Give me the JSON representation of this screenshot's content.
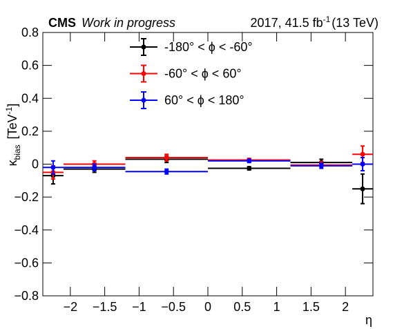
{
  "chart_data": {
    "type": "scatter",
    "experiment": "CMS",
    "status": "Work in progress",
    "lumi_text": "2017, 41.5 fb",
    "lumi_sup": "-1",
    "energy": "(13 TeV)",
    "y_label": "κ",
    "y_label_sub": "bias",
    "y_label_unit": "[TeV",
    "y_label_unit_sup": "-1",
    "y_label_close": "]",
    "x_label": "η",
    "xlim": [
      -2.4,
      2.4
    ],
    "ylim": [
      -0.8,
      0.8
    ],
    "xticks": [
      {
        "value": -2,
        "label": "−2"
      },
      {
        "value": -1.5,
        "label": "−1.5"
      },
      {
        "value": -1,
        "label": "−1"
      },
      {
        "value": -0.5,
        "label": "−0.5"
      },
      0,
      0.5,
      1,
      1.5,
      2
    ],
    "yticks": [
      {
        "value": -0.8,
        "label": "−0.8"
      },
      {
        "value": -0.6,
        "label": "−0.6"
      },
      {
        "value": -0.4,
        "label": "−0.4"
      },
      {
        "value": -0.2,
        "label": "−0.2"
      },
      0,
      0.2,
      0.4,
      0.6,
      0.8
    ],
    "legend": "top-left",
    "series": [
      {
        "name": "-180° < ϕ < -60°",
        "color": "#000000",
        "x": [
          -2.25,
          -1.65,
          -0.6,
          0.6,
          1.65,
          2.25
        ],
        "xerr": [
          0.15,
          0.45,
          0.6,
          0.6,
          0.45,
          0.15
        ],
        "values": [
          -0.07,
          -0.03,
          0.03,
          -0.025,
          0.01,
          -0.15
        ],
        "errors": [
          0.05,
          0.02,
          0.02,
          0.01,
          0.02,
          0.09
        ]
      },
      {
        "name": "-60° < ϕ < 60°",
        "color": "#ff0000",
        "x": [
          -2.25,
          -1.65,
          -0.6,
          0.6,
          1.65,
          2.25
        ],
        "xerr": [
          0.15,
          0.45,
          0.6,
          0.6,
          0.45,
          0.15
        ],
        "values": [
          -0.05,
          0.0,
          0.04,
          0.025,
          -0.005,
          0.06
        ],
        "errors": [
          0.04,
          0.02,
          0.02,
          0.01,
          0.02,
          0.05
        ]
      },
      {
        "name": "60° < ϕ < 180°",
        "color": "#0000ff",
        "x": [
          -2.25,
          -1.65,
          -0.6,
          0.6,
          1.65,
          2.25
        ],
        "xerr": [
          0.15,
          0.45,
          0.6,
          0.6,
          0.45,
          0.15
        ],
        "values": [
          -0.02,
          -0.02,
          -0.045,
          0.02,
          -0.01,
          0.0
        ],
        "errors": [
          0.04,
          0.02,
          0.015,
          0.01,
          0.015,
          0.04
        ]
      }
    ]
  }
}
